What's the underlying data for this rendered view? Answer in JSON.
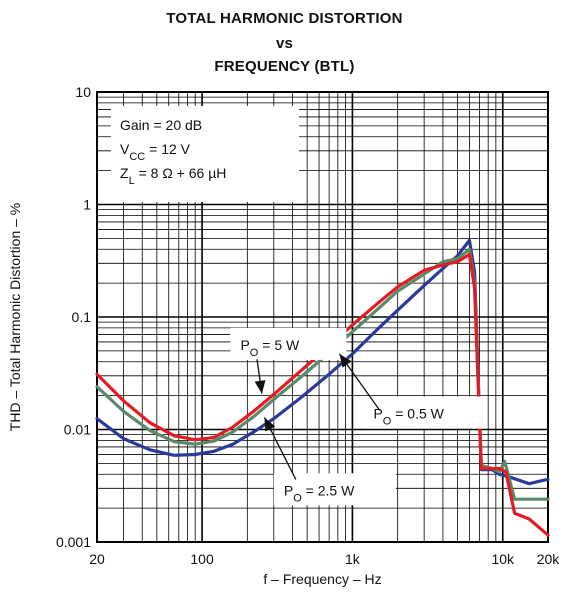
{
  "title_lines": [
    "TOTAL HARMONIC DISTORTION",
    "vs",
    "FREQUENCY (BTL)"
  ],
  "conditions": [
    {
      "base": "Gain = 20 dB",
      "sub": "",
      "rest": ""
    },
    {
      "base": "V",
      "sub": "CC",
      "rest": " = 12 V"
    },
    {
      "base": "Z",
      "sub": "L",
      "rest": " = 8 Ω + 66 µH"
    }
  ],
  "colors": {
    "red": "#e31b23",
    "green": "#5a8a6a",
    "blue": "#2a3a9a",
    "grid": "#000000"
  },
  "chart_data": {
    "type": "line",
    "x_scale": "log",
    "y_scale": "log",
    "xlabel": "f – Frequency – Hz",
    "ylabel": "THD – Total Harmonic Distortion – %",
    "xlim": [
      20,
      20000
    ],
    "ylim": [
      0.001,
      10
    ],
    "x_ticks": [
      {
        "value": 20,
        "label": "20"
      },
      {
        "value": 100,
        "label": "100"
      },
      {
        "value": 1000,
        "label": "1k"
      },
      {
        "value": 10000,
        "label": "10k"
      },
      {
        "value": 20000,
        "label": "20k"
      }
    ],
    "y_ticks": [
      {
        "value": 0.001,
        "label": "0.001"
      },
      {
        "value": 0.01,
        "label": "0.01"
      },
      {
        "value": 0.1,
        "label": "0.1"
      },
      {
        "value": 1,
        "label": "1"
      },
      {
        "value": 10,
        "label": "10"
      }
    ],
    "grid": true,
    "series": [
      {
        "name": "PO = 5 W",
        "label_base": "P",
        "label_sub": "O",
        "label_rest": " = 5 W",
        "color": "#e31b23",
        "points": [
          [
            20,
            0.031
          ],
          [
            30,
            0.018
          ],
          [
            45,
            0.0115
          ],
          [
            65,
            0.0088
          ],
          [
            90,
            0.0081
          ],
          [
            120,
            0.0085
          ],
          [
            160,
            0.0105
          ],
          [
            220,
            0.0145
          ],
          [
            300,
            0.0205
          ],
          [
            450,
            0.033
          ],
          [
            700,
            0.055
          ],
          [
            1000,
            0.085
          ],
          [
            1500,
            0.135
          ],
          [
            2000,
            0.185
          ],
          [
            3000,
            0.26
          ],
          [
            4000,
            0.29
          ],
          [
            5000,
            0.31
          ],
          [
            6000,
            0.36
          ],
          [
            6500,
            0.18
          ],
          [
            7200,
            0.0045
          ],
          [
            8500,
            0.0045
          ],
          [
            9500,
            0.0045
          ],
          [
            10500,
            0.0042
          ],
          [
            12000,
            0.0018
          ],
          [
            15000,
            0.0016
          ],
          [
            18000,
            0.0013
          ],
          [
            20000,
            0.00115
          ]
        ]
      },
      {
        "name": "PO = 2.5 W",
        "label_base": "P",
        "label_sub": "O",
        "label_rest": " = 2.5 W",
        "color": "#5a8a6a",
        "points": [
          [
            20,
            0.024
          ],
          [
            30,
            0.0145
          ],
          [
            45,
            0.0098
          ],
          [
            65,
            0.0078
          ],
          [
            90,
            0.0074
          ],
          [
            120,
            0.0079
          ],
          [
            160,
            0.0095
          ],
          [
            220,
            0.013
          ],
          [
            300,
            0.0185
          ],
          [
            450,
            0.029
          ],
          [
            700,
            0.048
          ],
          [
            1000,
            0.074
          ],
          [
            1500,
            0.12
          ],
          [
            2000,
            0.17
          ],
          [
            3000,
            0.24
          ],
          [
            4000,
            0.31
          ],
          [
            5000,
            0.33
          ],
          [
            6000,
            0.4
          ],
          [
            6500,
            0.2
          ],
          [
            7200,
            0.0048
          ],
          [
            8500,
            0.0045
          ],
          [
            9500,
            0.0042
          ],
          [
            10300,
            0.0052
          ],
          [
            12000,
            0.0024
          ],
          [
            15000,
            0.0024
          ],
          [
            18000,
            0.0024
          ],
          [
            20000,
            0.0024
          ]
        ]
      },
      {
        "name": "PO = 0.5 W",
        "label_base": "P",
        "label_sub": "O",
        "label_rest": " = 0.5 W",
        "color": "#2a3a9a",
        "points": [
          [
            20,
            0.0125
          ],
          [
            30,
            0.0083
          ],
          [
            45,
            0.0066
          ],
          [
            65,
            0.0059
          ],
          [
            90,
            0.006
          ],
          [
            120,
            0.0064
          ],
          [
            160,
            0.0074
          ],
          [
            220,
            0.0095
          ],
          [
            300,
            0.0125
          ],
          [
            450,
            0.019
          ],
          [
            700,
            0.031
          ],
          [
            1000,
            0.047
          ],
          [
            1500,
            0.08
          ],
          [
            2000,
            0.115
          ],
          [
            3000,
            0.19
          ],
          [
            4000,
            0.27
          ],
          [
            5000,
            0.35
          ],
          [
            6000,
            0.48
          ],
          [
            6500,
            0.25
          ],
          [
            7200,
            0.0044
          ],
          [
            8500,
            0.0044
          ],
          [
            9500,
            0.004
          ],
          [
            11000,
            0.0038
          ],
          [
            15000,
            0.0033
          ],
          [
            18000,
            0.0035
          ],
          [
            20000,
            0.0036
          ]
        ]
      }
    ]
  }
}
